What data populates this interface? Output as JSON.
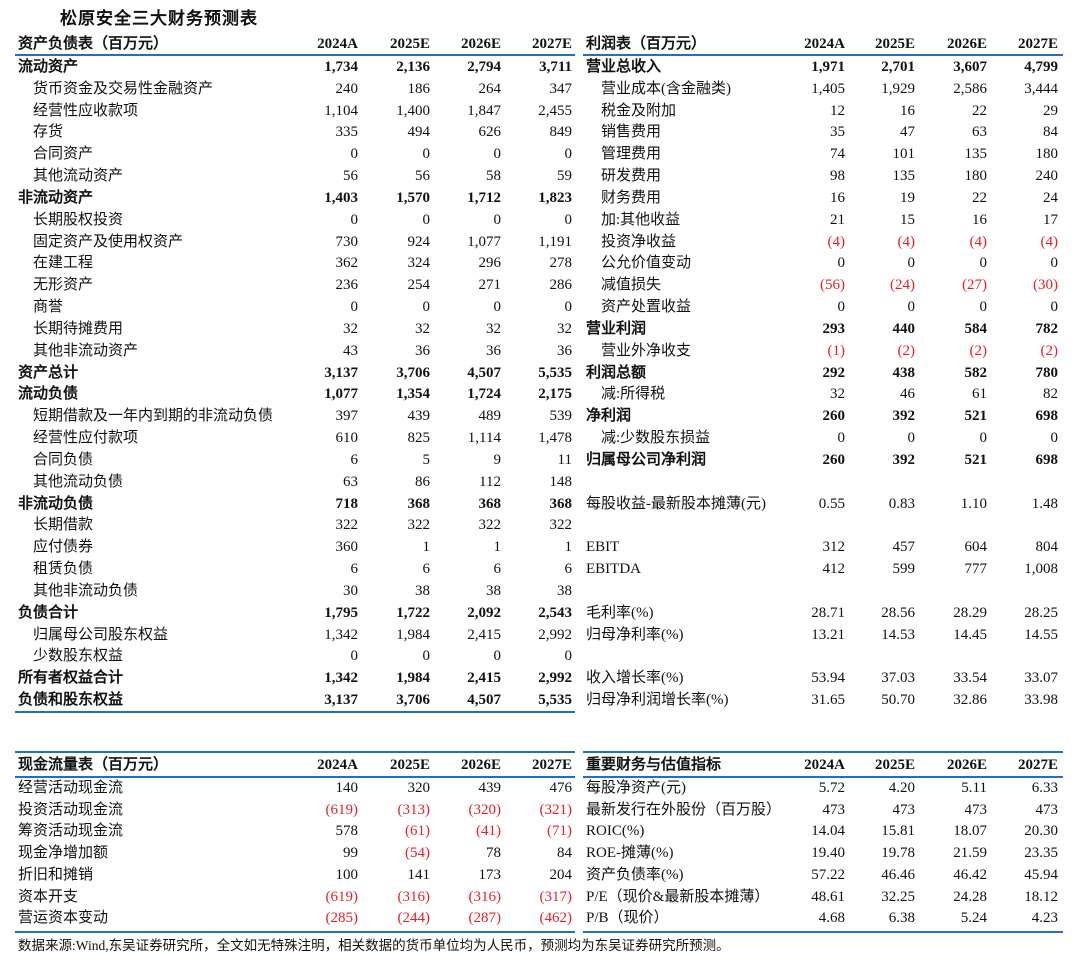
{
  "title": "松原安全三大财务预测表",
  "years": [
    "2024A",
    "2025E",
    "2026E",
    "2027E"
  ],
  "colors": {
    "accent_line": "#1f6fc5",
    "negative": "#e8202a"
  },
  "balance_sheet": {
    "header": "资产负债表（百万元）",
    "rows": [
      {
        "label": "流动资产",
        "bold": true,
        "values": [
          "1,734",
          "2,136",
          "2,794",
          "3,711"
        ]
      },
      {
        "label": "货币资金及交易性金融资产",
        "values": [
          "240",
          "186",
          "264",
          "347"
        ]
      },
      {
        "label": "经营性应收款项",
        "values": [
          "1,104",
          "1,400",
          "1,847",
          "2,455"
        ]
      },
      {
        "label": "存货",
        "values": [
          "335",
          "494",
          "626",
          "849"
        ]
      },
      {
        "label": "合同资产",
        "values": [
          "0",
          "0",
          "0",
          "0"
        ]
      },
      {
        "label": "其他流动资产",
        "values": [
          "56",
          "56",
          "58",
          "59"
        ]
      },
      {
        "label": "非流动资产",
        "bold": true,
        "values": [
          "1,403",
          "1,570",
          "1,712",
          "1,823"
        ]
      },
      {
        "label": "长期股权投资",
        "values": [
          "0",
          "0",
          "0",
          "0"
        ]
      },
      {
        "label": "固定资产及使用权资产",
        "values": [
          "730",
          "924",
          "1,077",
          "1,191"
        ]
      },
      {
        "label": "在建工程",
        "values": [
          "362",
          "324",
          "296",
          "278"
        ]
      },
      {
        "label": "无形资产",
        "values": [
          "236",
          "254",
          "271",
          "286"
        ]
      },
      {
        "label": "商誉",
        "values": [
          "0",
          "0",
          "0",
          "0"
        ]
      },
      {
        "label": "长期待摊费用",
        "values": [
          "32",
          "32",
          "32",
          "32"
        ]
      },
      {
        "label": "其他非流动资产",
        "values": [
          "43",
          "36",
          "36",
          "36"
        ]
      },
      {
        "label": "资产总计",
        "bold": true,
        "values": [
          "3,137",
          "3,706",
          "4,507",
          "5,535"
        ]
      },
      {
        "label": "流动负债",
        "bold": true,
        "values": [
          "1,077",
          "1,354",
          "1,724",
          "2,175"
        ]
      },
      {
        "label": "短期借款及一年内到期的非流动负债",
        "values": [
          "397",
          "439",
          "489",
          "539"
        ]
      },
      {
        "label": "经营性应付款项",
        "values": [
          "610",
          "825",
          "1,114",
          "1,478"
        ]
      },
      {
        "label": "合同负债",
        "values": [
          "6",
          "5",
          "9",
          "11"
        ]
      },
      {
        "label": "其他流动负债",
        "values": [
          "63",
          "86",
          "112",
          "148"
        ]
      },
      {
        "label": "非流动负债",
        "bold": true,
        "values": [
          "718",
          "368",
          "368",
          "368"
        ]
      },
      {
        "label": "长期借款",
        "values": [
          "322",
          "322",
          "322",
          "322"
        ]
      },
      {
        "label": "应付债券",
        "values": [
          "360",
          "1",
          "1",
          "1"
        ]
      },
      {
        "label": "租赁负债",
        "values": [
          "6",
          "6",
          "6",
          "6"
        ]
      },
      {
        "label": "其他非流动负债",
        "values": [
          "30",
          "38",
          "38",
          "38"
        ]
      },
      {
        "label": "负债合计",
        "bold": true,
        "values": [
          "1,795",
          "1,722",
          "2,092",
          "2,543"
        ]
      },
      {
        "label": "归属母公司股东权益",
        "values": [
          "1,342",
          "1,984",
          "2,415",
          "2,992"
        ]
      },
      {
        "label": "少数股东权益",
        "values": [
          "0",
          "0",
          "0",
          "0"
        ]
      },
      {
        "label": "所有者权益合计",
        "bold": true,
        "values": [
          "1,342",
          "1,984",
          "2,415",
          "2,992"
        ]
      },
      {
        "label": "负债和股东权益",
        "bold": true,
        "values": [
          "3,137",
          "3,706",
          "4,507",
          "5,535"
        ]
      }
    ]
  },
  "income_statement": {
    "header": "利润表（百万元）",
    "rows": [
      {
        "label": "营业总收入",
        "bold": true,
        "values": [
          "1,971",
          "2,701",
          "3,607",
          "4,799"
        ]
      },
      {
        "label": "营业成本(含金融类)",
        "values": [
          "1,405",
          "1,929",
          "2,586",
          "3,444"
        ]
      },
      {
        "label": "税金及附加",
        "values": [
          "12",
          "16",
          "22",
          "29"
        ]
      },
      {
        "label": "销售费用",
        "values": [
          "35",
          "47",
          "63",
          "84"
        ]
      },
      {
        "label": "管理费用",
        "values": [
          "74",
          "101",
          "135",
          "180"
        ]
      },
      {
        "label": "研发费用",
        "values": [
          "98",
          "135",
          "180",
          "240"
        ]
      },
      {
        "label": "财务费用",
        "values": [
          "16",
          "19",
          "22",
          "24"
        ]
      },
      {
        "label": "加:其他收益",
        "values": [
          "21",
          "15",
          "16",
          "17"
        ]
      },
      {
        "label": "投资净收益",
        "values": [
          "(4)",
          "(4)",
          "(4)",
          "(4)"
        ]
      },
      {
        "label": "公允价值变动",
        "values": [
          "0",
          "0",
          "0",
          "0"
        ]
      },
      {
        "label": "减值损失",
        "values": [
          "(56)",
          "(24)",
          "(27)",
          "(30)"
        ]
      },
      {
        "label": "资产处置收益",
        "values": [
          "0",
          "0",
          "0",
          "0"
        ]
      },
      {
        "label": "营业利润",
        "bold": true,
        "values": [
          "293",
          "440",
          "584",
          "782"
        ]
      },
      {
        "label": "营业外净收支",
        "values": [
          "(1)",
          "(2)",
          "(2)",
          "(2)"
        ]
      },
      {
        "label": "利润总额",
        "bold": true,
        "values": [
          "292",
          "438",
          "582",
          "780"
        ]
      },
      {
        "label": "减:所得税",
        "values": [
          "32",
          "46",
          "61",
          "82"
        ]
      },
      {
        "label": "净利润",
        "bold": true,
        "values": [
          "260",
          "392",
          "521",
          "698"
        ]
      },
      {
        "label": "减:少数股东损益",
        "values": [
          "0",
          "0",
          "0",
          "0"
        ]
      },
      {
        "label": "归属母公司净利润",
        "bold": true,
        "values": [
          "260",
          "392",
          "521",
          "698"
        ]
      },
      null,
      {
        "label": "每股收益-最新股本摊薄(元)",
        "plain": true,
        "values": [
          "0.55",
          "0.83",
          "1.10",
          "1.48"
        ]
      },
      null,
      {
        "label": "EBIT",
        "plain": true,
        "values": [
          "312",
          "457",
          "604",
          "804"
        ]
      },
      {
        "label": "EBITDA",
        "plain": true,
        "values": [
          "412",
          "599",
          "777",
          "1,008"
        ]
      },
      null,
      {
        "label": "毛利率(%)",
        "plain": true,
        "values": [
          "28.71",
          "28.56",
          "28.29",
          "28.25"
        ]
      },
      {
        "label": "归母净利率(%)",
        "plain": true,
        "values": [
          "13.21",
          "14.53",
          "14.45",
          "14.55"
        ]
      },
      null,
      {
        "label": "收入增长率(%)",
        "plain": true,
        "values": [
          "53.94",
          "37.03",
          "33.54",
          "33.07"
        ]
      },
      {
        "label": "归母净利润增长率(%)",
        "plain": true,
        "values": [
          "31.65",
          "50.70",
          "32.86",
          "33.98"
        ]
      }
    ]
  },
  "cash_flow": {
    "header": "现金流量表（百万元）",
    "rows": [
      {
        "label": "经营活动现金流",
        "plain": true,
        "values": [
          "140",
          "320",
          "439",
          "476"
        ]
      },
      {
        "label": "投资活动现金流",
        "plain": true,
        "values": [
          "(619)",
          "(313)",
          "(320)",
          "(321)"
        ]
      },
      {
        "label": "筹资活动现金流",
        "plain": true,
        "values": [
          "578",
          "(61)",
          "(41)",
          "(71)"
        ]
      },
      {
        "label": "现金净增加额",
        "plain": true,
        "values": [
          "99",
          "(54)",
          "78",
          "84"
        ]
      },
      {
        "label": "折旧和摊销",
        "plain": true,
        "values": [
          "100",
          "141",
          "173",
          "204"
        ]
      },
      {
        "label": "资本开支",
        "plain": true,
        "values": [
          "(619)",
          "(316)",
          "(316)",
          "(317)"
        ]
      },
      {
        "label": "营运资本变动",
        "plain": true,
        "values": [
          "(285)",
          "(244)",
          "(287)",
          "(462)"
        ]
      }
    ]
  },
  "key_metrics": {
    "header": "重要财务与估值指标",
    "rows": [
      {
        "label": "每股净资产(元)",
        "plain": true,
        "values": [
          "5.72",
          "4.20",
          "5.11",
          "6.33"
        ]
      },
      {
        "label": "最新发行在外股份（百万股）",
        "plain": true,
        "values": [
          "473",
          "473",
          "473",
          "473"
        ]
      },
      {
        "label": "ROIC(%)",
        "plain": true,
        "values": [
          "14.04",
          "15.81",
          "18.07",
          "20.30"
        ]
      },
      {
        "label": "ROE-摊薄(%)",
        "plain": true,
        "values": [
          "19.40",
          "19.78",
          "21.59",
          "23.35"
        ]
      },
      {
        "label": "资产负债率(%)",
        "plain": true,
        "values": [
          "57.22",
          "46.46",
          "46.42",
          "45.94"
        ]
      },
      {
        "label": "P/E（现价&最新股本摊薄）",
        "plain": true,
        "values": [
          "48.61",
          "32.25",
          "24.28",
          "18.12"
        ]
      },
      {
        "label": "P/B（现价）",
        "plain": true,
        "values": [
          "4.68",
          "6.38",
          "5.24",
          "4.23"
        ]
      }
    ]
  },
  "footnote": "数据来源:Wind,东吴证券研究所，全文如无特殊注明，相关数据的货币单位均为人民币，预测均为东吴证券研究所预测。"
}
